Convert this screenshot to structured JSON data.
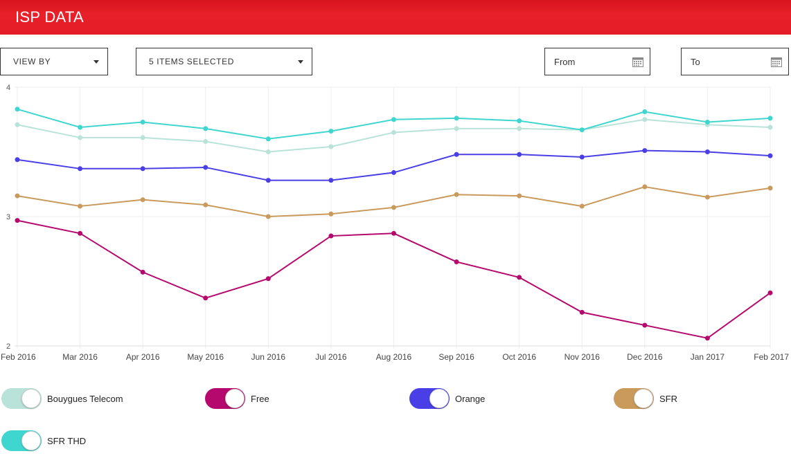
{
  "header": {
    "title": "ISP DATA"
  },
  "controls": {
    "view_by": "VIEW BY",
    "items_selected": "5 ITEMS SELECTED",
    "from_placeholder": "From",
    "to_placeholder": "To"
  },
  "chart_data": {
    "type": "line",
    "title": "",
    "xlabel": "",
    "ylabel": "",
    "ylim": [
      2,
      4
    ],
    "yticks": [
      2,
      3,
      4
    ],
    "grid": true,
    "categories": [
      "Feb 2016",
      "Mar 2016",
      "Apr 2016",
      "May 2016",
      "Jun 2016",
      "Jul 2016",
      "Aug 2016",
      "Sep 2016",
      "Oct 2016",
      "Nov 2016",
      "Dec 2016",
      "Jan 2017",
      "Feb 2017"
    ],
    "series": [
      {
        "name": "Bouygues Telecom",
        "color": "#b9e3d9",
        "values": [
          3.71,
          3.61,
          3.61,
          3.58,
          3.5,
          3.54,
          3.65,
          3.68,
          3.68,
          3.67,
          3.75,
          3.71,
          3.69
        ]
      },
      {
        "name": "Free",
        "color": "#b5096e",
        "values": [
          2.97,
          2.87,
          2.57,
          2.37,
          2.52,
          2.85,
          2.87,
          2.65,
          2.53,
          2.26,
          2.16,
          2.06,
          2.41
        ]
      },
      {
        "name": "Orange",
        "color": "#4a3fe6",
        "values": [
          3.44,
          3.37,
          3.37,
          3.38,
          3.28,
          3.28,
          3.34,
          3.48,
          3.48,
          3.46,
          3.51,
          3.5,
          3.47
        ]
      },
      {
        "name": "SFR",
        "color": "#c99a5b",
        "values": [
          3.16,
          3.08,
          3.13,
          3.09,
          3.0,
          3.02,
          3.07,
          3.17,
          3.16,
          3.08,
          3.23,
          3.15,
          3.22
        ]
      },
      {
        "name": "SFR THD",
        "color": "#3fd6d0",
        "values": [
          3.83,
          3.69,
          3.73,
          3.68,
          3.6,
          3.66,
          3.75,
          3.76,
          3.74,
          3.67,
          3.81,
          3.73,
          3.76
        ]
      }
    ]
  },
  "legend": [
    {
      "label": "Bouygues Telecom",
      "color": "#b9e3d9"
    },
    {
      "label": "Free",
      "color": "#b5096e"
    },
    {
      "label": "Orange",
      "color": "#4a3fe6"
    },
    {
      "label": "SFR",
      "color": "#c99a5b"
    },
    {
      "label": "SFR THD",
      "color": "#3fd6d0"
    }
  ],
  "icons": {
    "calendar": "calendar-icon",
    "caret": "chevron-down-icon"
  }
}
